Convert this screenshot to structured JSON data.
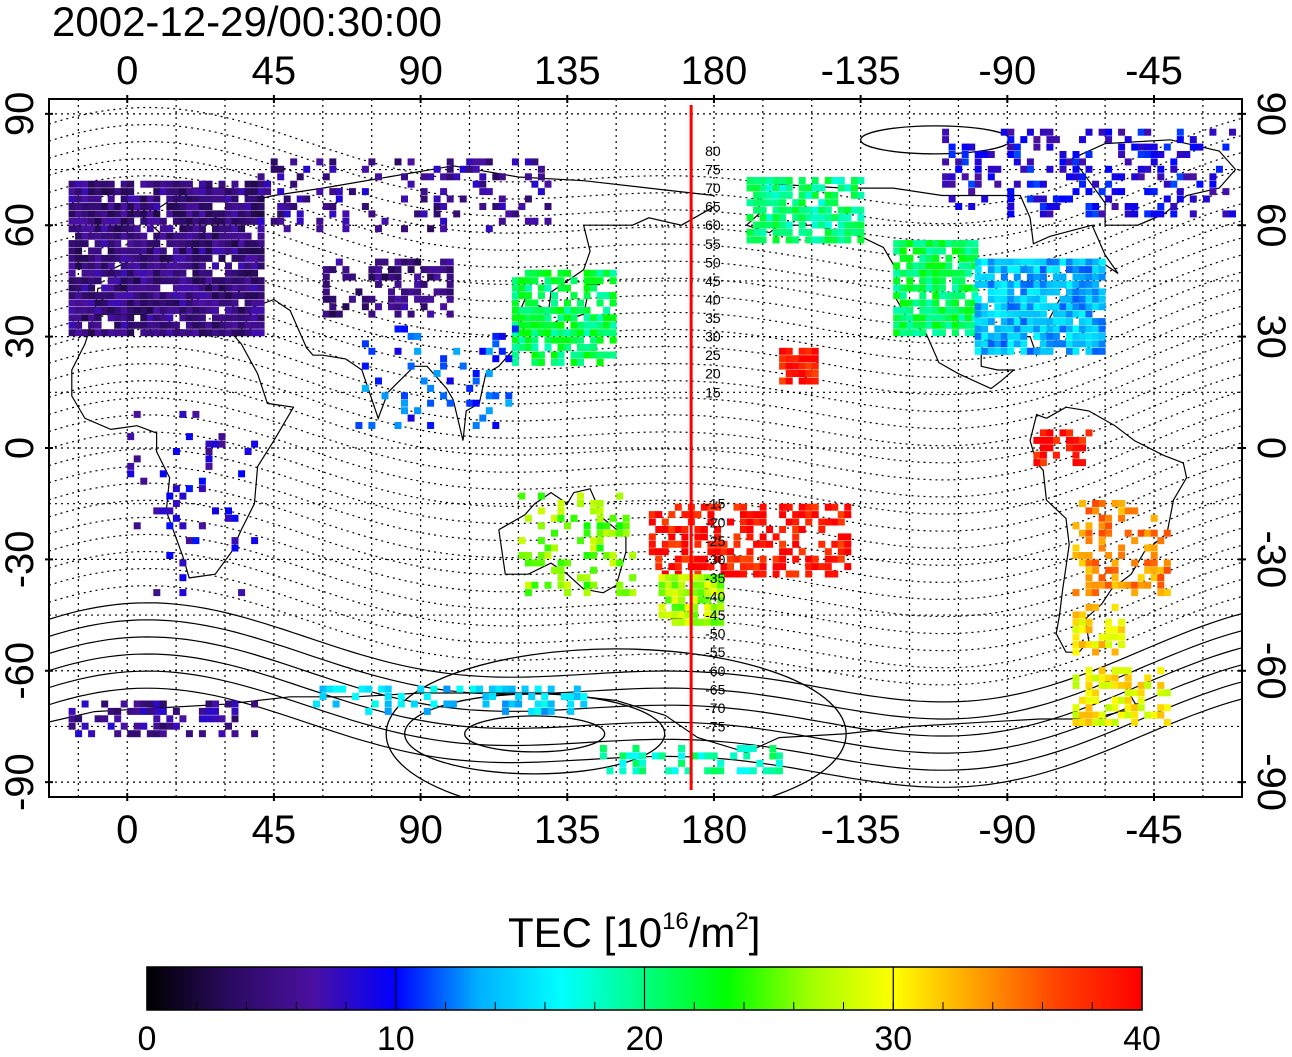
{
  "title": "2002-12-29/00:30:00",
  "map": {
    "lon_ticks": [
      "0",
      "45",
      "90",
      "135",
      "180",
      "-135",
      "-90",
      "-45"
    ],
    "lon_tick_values": [
      0,
      45,
      90,
      135,
      180,
      225,
      270,
      315
    ],
    "lat_ticks": [
      "90",
      "60",
      "30",
      "0",
      "-30",
      "-60",
      "-90"
    ],
    "lat_tick_values": [
      90,
      60,
      30,
      0,
      -30,
      -60,
      -90
    ],
    "lon_range": [
      -24,
      342
    ],
    "lat_range": [
      -94,
      94
    ],
    "grid_spacing_deg": 15,
    "meridian_lon": 173,
    "meridian_color": "#ff0000",
    "dip_labels": [
      "80",
      "75",
      "70",
      "65",
      "60",
      "55",
      "50",
      "45",
      "40",
      "35",
      "30",
      "25",
      "20",
      "15",
      "-15",
      "-20",
      "-25",
      "-30",
      "-35",
      "-40",
      "-45",
      "-50",
      "-55",
      "-60",
      "-65",
      "-70",
      "-75"
    ],
    "dip_label_lats": [
      80,
      75,
      70,
      65,
      60,
      55,
      50,
      45,
      40,
      35,
      30,
      25,
      20,
      15,
      -15,
      -20,
      -25,
      -30,
      -35,
      -40,
      -45,
      -50,
      -55,
      -60,
      -65,
      -70,
      -75
    ]
  },
  "colorbar": {
    "label_prefix": "TEC  [10",
    "label_sup1": "16",
    "label_mid": "/m",
    "label_sup2": "2",
    "label_suffix": "]",
    "ticks": [
      "0",
      "10",
      "20",
      "30",
      "40"
    ],
    "tick_values": [
      0,
      10,
      20,
      30,
      40
    ],
    "min": 0,
    "max": 40,
    "stops": [
      "#000000",
      "#2a0a60",
      "#4a10a0",
      "#0000ff",
      "#00b0ff",
      "#00ffff",
      "#00ff80",
      "#00ff00",
      "#a0ff00",
      "#ffff00",
      "#ffa000",
      "#ff4000",
      "#ff0000"
    ]
  },
  "tec_regions": [
    {
      "name": "europe",
      "lon": [
        -18,
        42
      ],
      "lat": [
        30,
        72
      ],
      "tec": 5,
      "density": 0.9
    },
    {
      "name": "russia-north",
      "lon": [
        40,
        130
      ],
      "lat": [
        58,
        78
      ],
      "tec": 6,
      "density": 0.25
    },
    {
      "name": "central-asia",
      "lon": [
        60,
        100
      ],
      "lat": [
        35,
        50
      ],
      "tec": 5,
      "density": 0.5
    },
    {
      "name": "east-asia-japan",
      "lon": [
        118,
        150
      ],
      "lat": [
        22,
        48
      ],
      "tec": 21,
      "density": 0.75
    },
    {
      "name": "south-asia",
      "lon": [
        70,
        120
      ],
      "lat": [
        5,
        32
      ],
      "tec": 11,
      "density": 0.18
    },
    {
      "name": "alaska",
      "lon": [
        190,
        225
      ],
      "lat": [
        55,
        72
      ],
      "tec": 20,
      "density": 0.7
    },
    {
      "name": "north-america-west",
      "lon": [
        235,
        260
      ],
      "lat": [
        30,
        55
      ],
      "tec": 21,
      "density": 0.85
    },
    {
      "name": "north-america-east",
      "lon": [
        260,
        300
      ],
      "lat": [
        25,
        50
      ],
      "tec": 14,
      "density": 0.9
    },
    {
      "name": "greenland-arctic",
      "lon": [
        250,
        340
      ],
      "lat": [
        62,
        85
      ],
      "tec": 9,
      "density": 0.3
    },
    {
      "name": "pacific-equator",
      "lon": [
        160,
        222
      ],
      "lat": [
        -35,
        -15
      ],
      "tec": 39,
      "density": 0.55
    },
    {
      "name": "hawaii",
      "lon": [
        200,
        212
      ],
      "lat": [
        17,
        27
      ],
      "tec": 39,
      "density": 0.8
    },
    {
      "name": "australia",
      "lon": [
        120,
        155
      ],
      "lat": [
        -40,
        -12
      ],
      "tec": 26,
      "density": 0.3
    },
    {
      "name": "new-zealand",
      "lon": [
        163,
        182
      ],
      "lat": [
        -48,
        -34
      ],
      "tec": 27,
      "density": 0.75
    },
    {
      "name": "south-america-north",
      "lon": [
        278,
        295
      ],
      "lat": [
        -5,
        5
      ],
      "tec": 39,
      "density": 0.55
    },
    {
      "name": "south-america-east",
      "lon": [
        290,
        320
      ],
      "lat": [
        -40,
        -15
      ],
      "tec": 34,
      "density": 0.45
    },
    {
      "name": "patagonia",
      "lon": [
        290,
        305
      ],
      "lat": [
        -56,
        -42
      ],
      "tec": 31,
      "density": 0.5
    },
    {
      "name": "antarctic-peninsula",
      "lon": [
        290,
        320
      ],
      "lat": [
        -75,
        -60
      ],
      "tec": 30,
      "density": 0.55
    },
    {
      "name": "antarctica-east",
      "lon": [
        -18,
        40
      ],
      "lat": [
        -78,
        -68
      ],
      "tec": 6,
      "density": 0.4
    },
    {
      "name": "antarctica-mid",
      "lon": [
        55,
        140
      ],
      "lat": [
        -72,
        -64
      ],
      "tec": 15,
      "density": 0.3
    },
    {
      "name": "antarctica-ross",
      "lon": [
        145,
        200
      ],
      "lat": [
        -88,
        -80
      ],
      "tec": 19,
      "density": 0.45
    },
    {
      "name": "africa",
      "lon": [
        0,
        40
      ],
      "lat": [
        -40,
        10
      ],
      "tec": 8,
      "density": 0.12
    }
  ]
}
